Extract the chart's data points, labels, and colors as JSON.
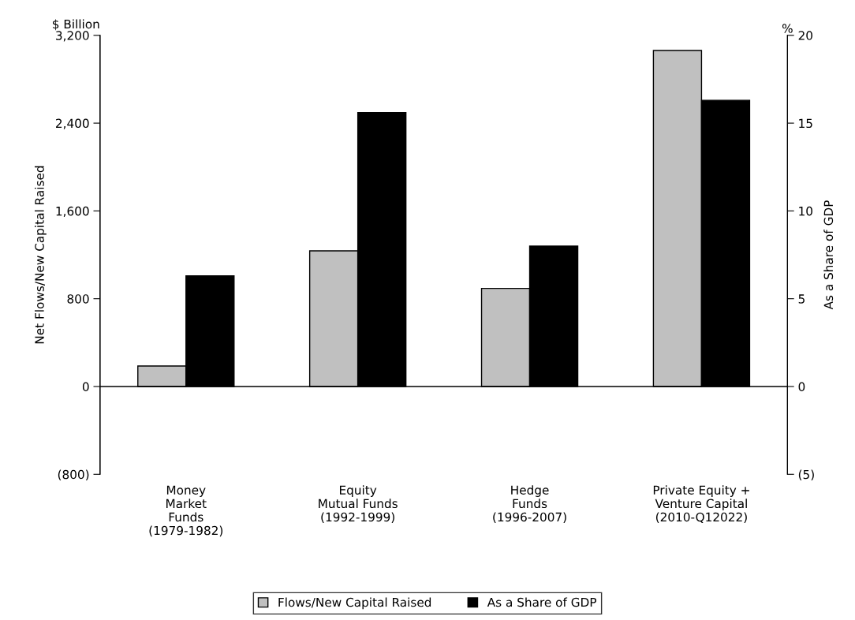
{
  "chart_data": {
    "type": "bar",
    "categories": [
      "Money\nMarket\nFunds\n(1979-1982)",
      "Equity\nMutual Funds\n(1992-1999)",
      "Hedge\nFunds\n(1996-2007)",
      "Private Equity +\nVenture Capital\n(2010-Q12022)"
    ],
    "series": [
      {
        "name": "Flows/New Capital Raised",
        "color": "#c0c0c0",
        "values": [
          187,
          1236,
          894,
          3062
        ]
      },
      {
        "name": "As a Share of GDP",
        "color": "#000000",
        "axis": "y2",
        "values": [
          6.3,
          15.6,
          8.0,
          16.3
        ]
      }
    ],
    "ylabel": "Net Flows/New Capital Raised",
    "y2label": "As a Share of GDP",
    "annotations": [
      "$ Billion",
      "%"
    ],
    "ylim": [
      -800,
      3200
    ],
    "yticks": [
      {
        "value": -800,
        "label": "(800)"
      },
      0,
      {
        "value": 800,
        "label": "800"
      },
      {
        "value": 1600,
        "label": "1,600"
      },
      {
        "value": 2400,
        "label": "2,400"
      },
      {
        "value": 3200,
        "label": "3,200"
      }
    ],
    "y2lim": [
      -5,
      20
    ],
    "y2ticks": [
      {
        "value": -5,
        "label": "(5)"
      },
      0,
      5,
      10,
      15,
      20
    ],
    "ref_lines": [
      {
        "axis": "y",
        "value": 0,
        "color": "#000000"
      }
    ],
    "legend": "bottom",
    "grid": false
  }
}
